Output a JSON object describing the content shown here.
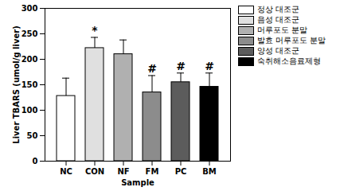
{
  "chart_data": {
    "type": "bar",
    "y_label": "Liver TBARS (umol/g liver)",
    "x_label": "Sample",
    "categories": [
      "NC",
      "CON",
      "NF",
      "FM",
      "PC",
      "BM"
    ],
    "series": [
      {
        "name": "정상 대조군",
        "color": "#ffffff",
        "values": [
          128,
          null,
          null,
          null,
          null,
          null
        ],
        "errors": [
          35,
          null,
          null,
          null,
          null,
          null
        ]
      },
      {
        "name": "음성 대조군",
        "color": "#e0e0e0",
        "values": [
          null,
          222,
          null,
          null,
          null,
          null
        ],
        "errors": [
          null,
          21,
          null,
          null,
          null,
          null
        ]
      },
      {
        "name": "머루포도 분말",
        "color": "#b0b0b0",
        "values": [
          null,
          null,
          210,
          null,
          null,
          null
        ],
        "errors": [
          null,
          null,
          28,
          null,
          null,
          null
        ]
      },
      {
        "name": "발효 머루포도 분말",
        "color": "#8c8c8c",
        "values": [
          null,
          null,
          null,
          135,
          null,
          null
        ],
        "errors": [
          null,
          null,
          null,
          33,
          null,
          null
        ]
      },
      {
        "name": "양성 대조군",
        "color": "#5c5c5c",
        "values": [
          null,
          null,
          null,
          null,
          155,
          null
        ],
        "errors": [
          null,
          null,
          null,
          null,
          18,
          null
        ]
      },
      {
        "name": "숙취해소음료제형",
        "color": "#000000",
        "values": [
          null,
          null,
          null,
          null,
          null,
          146
        ],
        "errors": [
          null,
          null,
          null,
          null,
          null,
          27
        ]
      }
    ],
    "annotations": [
      {
        "category": "CON",
        "text": "*"
      },
      {
        "category": "FM",
        "text": "#"
      },
      {
        "category": "PC",
        "text": "#"
      },
      {
        "category": "BM",
        "text": "#"
      }
    ],
    "ylim": [
      0,
      300
    ],
    "yticks": [
      0,
      50,
      100,
      150,
      200,
      250,
      300
    ],
    "legend": "upper right",
    "grid": false
  }
}
